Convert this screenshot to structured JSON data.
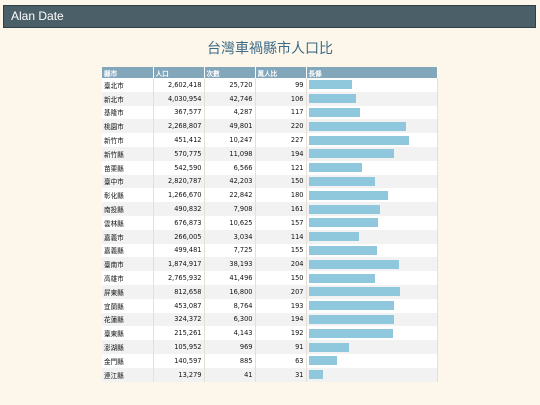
{
  "app": {
    "brand": "Alan Date"
  },
  "page": {
    "title": "台灣車禍縣市人口比"
  },
  "table": {
    "headers": {
      "county": "縣市",
      "population": "人口",
      "count": "次數",
      "per_10k": "萬人比",
      "chart": "長條"
    },
    "rows": [
      {
        "county": "臺北市",
        "population": "2,602,418",
        "count": "25,720",
        "per_10k": "99",
        "ratio": 99
      },
      {
        "county": "新北市",
        "population": "4,030,954",
        "count": "42,746",
        "per_10k": "106",
        "ratio": 106
      },
      {
        "county": "基隆市",
        "population": "367,577",
        "count": "4,287",
        "per_10k": "117",
        "ratio": 117
      },
      {
        "county": "桃園市",
        "population": "2,268,807",
        "count": "49,801",
        "per_10k": "220",
        "ratio": 220
      },
      {
        "county": "新竹市",
        "population": "451,412",
        "count": "10,247",
        "per_10k": "227",
        "ratio": 227
      },
      {
        "county": "新竹縣",
        "population": "570,775",
        "count": "11,098",
        "per_10k": "194",
        "ratio": 194
      },
      {
        "county": "苗栗縣",
        "population": "542,590",
        "count": "6,566",
        "per_10k": "121",
        "ratio": 121
      },
      {
        "county": "臺中市",
        "population": "2,820,787",
        "count": "42,203",
        "per_10k": "150",
        "ratio": 150
      },
      {
        "county": "彰化縣",
        "population": "1,266,670",
        "count": "22,842",
        "per_10k": "180",
        "ratio": 180
      },
      {
        "county": "南投縣",
        "population": "490,832",
        "count": "7,908",
        "per_10k": "161",
        "ratio": 161
      },
      {
        "county": "雲林縣",
        "population": "676,873",
        "count": "10,625",
        "per_10k": "157",
        "ratio": 157
      },
      {
        "county": "嘉義市",
        "population": "266,005",
        "count": "3,034",
        "per_10k": "114",
        "ratio": 114
      },
      {
        "county": "嘉義縣",
        "population": "499,481",
        "count": "7,725",
        "per_10k": "155",
        "ratio": 155
      },
      {
        "county": "臺南市",
        "population": "1,874,917",
        "count": "38,193",
        "per_10k": "204",
        "ratio": 204
      },
      {
        "county": "高雄市",
        "population": "2,765,932",
        "count": "41,496",
        "per_10k": "150",
        "ratio": 150
      },
      {
        "county": "屏東縣",
        "population": "812,658",
        "count": "16,800",
        "per_10k": "207",
        "ratio": 207
      },
      {
        "county": "宜蘭縣",
        "population": "453,087",
        "count": "8,764",
        "per_10k": "193",
        "ratio": 193
      },
      {
        "county": "花蓮縣",
        "population": "324,372",
        "count": "6,300",
        "per_10k": "194",
        "ratio": 194
      },
      {
        "county": "臺東縣",
        "population": "215,261",
        "count": "4,143",
        "per_10k": "192",
        "ratio": 192
      },
      {
        "county": "澎湖縣",
        "population": "105,952",
        "count": "969",
        "per_10k": "91",
        "ratio": 91
      },
      {
        "county": "金門縣",
        "population": "140,597",
        "count": "885",
        "per_10k": "63",
        "ratio": 63
      },
      {
        "county": "連江縣",
        "population": "13,279",
        "count": "41",
        "per_10k": "31",
        "ratio": 31
      }
    ]
  },
  "colors": {
    "bar": "#8fc8dd",
    "header": "#82a6ba",
    "topbar": "#4a5f67",
    "title": "#3e6a86"
  }
}
